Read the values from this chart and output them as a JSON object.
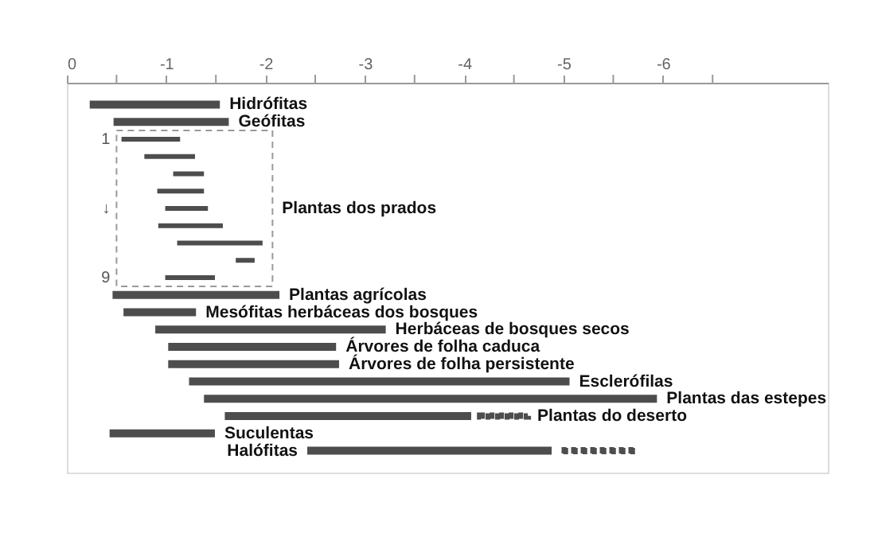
{
  "chart_data": {
    "type": "bar",
    "orientation": "horizontal",
    "categories": [
      "Hidrófitas",
      "Geófitas",
      null,
      null,
      null,
      null,
      "Plantas dos prados",
      null,
      null,
      null,
      null,
      "Plantas agrícolas",
      "Mesófitas herbáceas dos bosques",
      "Herbáceas de bosques secos",
      "Árvores de folha caduca",
      "Árvores de folha persistente",
      "Esclerófilas",
      "Plantas das estepes",
      "Plantas do deserto",
      "Suculentas",
      "Halófitas"
    ],
    "series": [
      {
        "color": "#4d4d4d",
        "line_style": "solid",
        "base": [
          -0.23,
          -0.47,
          -0.55,
          -0.78,
          -1.07,
          -0.91,
          -0.99,
          -0.92,
          -1.11,
          -1.7,
          -0.99,
          -0.46,
          -0.57,
          -0.89,
          -1.02,
          -1.02,
          -1.23,
          -1.38,
          -1.59,
          -0.43,
          -2.42
        ],
        "values": [
          -1.31,
          -1.16,
          -0.59,
          -0.51,
          -0.31,
          -0.47,
          -0.43,
          -0.65,
          -0.86,
          -0.19,
          -0.5,
          -1.68,
          -0.73,
          -2.32,
          -1.69,
          -1.72,
          -3.83,
          -4.56,
          -2.48,
          -1.06,
          -2.46
        ]
      },
      {
        "color": "#4d4d4d",
        "line_style": "dotted",
        "base": [
          null,
          null,
          null,
          null,
          null,
          null,
          null,
          null,
          null,
          null,
          null,
          null,
          null,
          null,
          null,
          null,
          null,
          null,
          -4.16,
          null,
          -4.98
        ],
        "values": [
          null,
          null,
          null,
          null,
          null,
          null,
          null,
          null,
          null,
          null,
          null,
          null,
          null,
          null,
          null,
          null,
          null,
          null,
          -0.48,
          null,
          -0.75
        ]
      }
    ],
    "xlim": [
      0,
      -7.66
    ],
    "xticks": [
      0,
      {
        "value": -0.5,
        "label": null
      },
      -1,
      {
        "value": -1.5,
        "label": null
      },
      -2,
      {
        "value": -2.5,
        "label": null
      },
      -3,
      {
        "value": -3.5,
        "label": null
      },
      -4,
      {
        "value": -4.5,
        "label": null
      },
      -5,
      {
        "value": -5.5,
        "label": null
      },
      -6,
      {
        "value": -6.5,
        "label": null
      }
    ],
    "annotations": [
      "1",
      "↓",
      "9"
    ],
    "tick_labels": "x",
    "grid": false,
    "legend": false
  }
}
